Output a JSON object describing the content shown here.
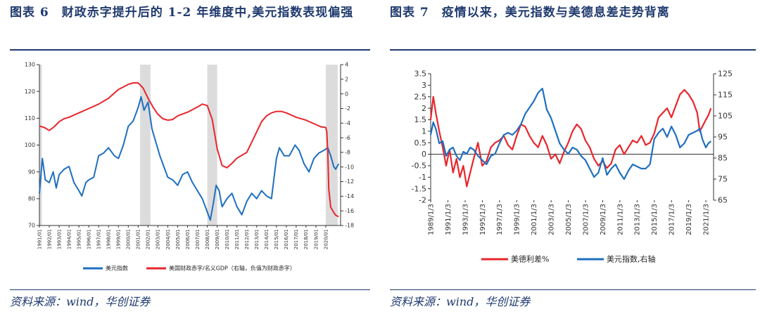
{
  "left": {
    "title": "图表 6　财政赤字提升后的 1-2 年维度中,美元指数表现偏强",
    "source": "资料来源：wind，华创证券",
    "chart_data": {
      "type": "line",
      "x_range": [
        1991.0,
        2021.5
      ],
      "x_labels": [
        "1991/01",
        "1992/01",
        "1993/01",
        "1994/01",
        "1995/01",
        "1996/01",
        "1997/01",
        "1998/01",
        "1999/01",
        "2000/01",
        "2001/01",
        "2002/01",
        "2003/01",
        "2004/01",
        "2005/01",
        "2006/01",
        "2007/01",
        "2008/01",
        "2009/01",
        "2010/01",
        "2011/01",
        "2012/01",
        "2013/01",
        "2014/01",
        "2015/01",
        "2016/01",
        "2017/01",
        "2018/01",
        "2019/01",
        "2020/01"
      ],
      "y_left": {
        "ticks": [
          "70",
          "80",
          "90",
          "100",
          "110",
          "120",
          "130"
        ],
        "lim": [
          70,
          130
        ]
      },
      "y_right": {
        "ticks": [
          "4",
          "2",
          "0",
          "-2",
          "-4",
          "-6",
          "-8",
          "-10",
          "-12",
          "-14",
          "-16",
          "-18"
        ],
        "lim": [
          -18,
          4
        ]
      },
      "shaded_periods": [
        [
          1991.0,
          1991.25
        ],
        [
          2001.2,
          2002.25
        ],
        [
          2008.0,
          2009.0
        ],
        [
          2020.0,
          2021.2
        ]
      ],
      "series": [
        {
          "name": "美元指数",
          "axis": "left",
          "color": "#1f6fc0",
          "x": [
            1991.0,
            1991.3,
            1991.6,
            1992.0,
            1992.4,
            1992.7,
            1993.0,
            1993.5,
            1994.0,
            1994.5,
            1995.0,
            1995.3,
            1995.7,
            1996.0,
            1996.5,
            1997.0,
            1997.5,
            1998.0,
            1998.6,
            1999.0,
            1999.5,
            2000.0,
            2000.5,
            2001.0,
            2001.3,
            2001.6,
            2002.0,
            2002.4,
            2002.8,
            2003.2,
            2003.6,
            2004.0,
            2004.5,
            2005.0,
            2005.5,
            2006.0,
            2006.5,
            2007.0,
            2007.5,
            2008.0,
            2008.3,
            2008.6,
            2008.9,
            2009.2,
            2009.5,
            2010.0,
            2010.5,
            2011.0,
            2011.5,
            2012.0,
            2012.5,
            2013.0,
            2013.5,
            2014.0,
            2014.5,
            2015.0,
            2015.3,
            2015.8,
            2016.3,
            2016.9,
            2017.3,
            2017.8,
            2018.3,
            2018.8,
            2019.3,
            2019.8,
            2020.2,
            2020.5,
            2020.8,
            2021.0,
            2021.3
          ],
          "y": [
            82,
            95,
            87,
            86,
            90,
            84,
            89,
            91,
            92,
            86,
            83,
            81,
            86,
            87,
            88,
            96,
            97,
            99,
            96,
            95,
            100,
            107,
            109,
            114,
            118,
            113,
            116,
            106,
            101,
            96,
            92,
            88,
            87,
            85,
            89,
            90,
            86,
            83,
            80,
            75,
            72,
            78,
            85,
            83,
            77,
            80,
            82,
            77,
            74,
            79,
            82,
            80,
            83,
            81,
            80,
            95,
            99,
            96,
            96,
            100,
            98,
            93,
            90,
            95,
            97,
            98,
            99,
            96,
            92,
            91,
            93
          ]
        },
        {
          "name": "美国财政赤字/名义GDP（右轴，负值为财政赤字）",
          "axis": "right",
          "color": "#e8262d",
          "x": [
            1991.0,
            1991.5,
            1992.0,
            1992.5,
            1993.0,
            1993.5,
            1994.0,
            1995.0,
            1996.0,
            1997.0,
            1998.0,
            1999.0,
            2000.0,
            2000.5,
            2001.0,
            2001.5,
            2002.0,
            2002.5,
            2003.0,
            2003.5,
            2004.0,
            2004.5,
            2005.0,
            2006.0,
            2007.0,
            2007.5,
            2008.0,
            2008.5,
            2009.0,
            2009.5,
            2010.0,
            2010.5,
            2011.0,
            2012.0,
            2013.0,
            2013.5,
            2014.0,
            2014.5,
            2015.0,
            2015.5,
            2016.0,
            2017.0,
            2018.0,
            2019.0,
            2019.5,
            2020.0,
            2020.1,
            2020.2,
            2020.3,
            2020.5,
            2020.8,
            2021.0,
            2021.3
          ],
          "y": [
            -4.4,
            -4.6,
            -5.0,
            -4.5,
            -3.8,
            -3.4,
            -3.2,
            -2.6,
            -2.0,
            -1.4,
            -0.6,
            0.6,
            1.3,
            1.5,
            1.5,
            0.8,
            -0.6,
            -1.8,
            -2.8,
            -3.4,
            -3.6,
            -3.5,
            -3.0,
            -2.5,
            -1.8,
            -1.4,
            -1.6,
            -3.5,
            -7.5,
            -9.8,
            -10.1,
            -9.5,
            -8.8,
            -8.0,
            -5.2,
            -3.8,
            -3.0,
            -2.6,
            -2.4,
            -2.4,
            -2.6,
            -3.2,
            -3.6,
            -4.2,
            -4.5,
            -4.6,
            -5.2,
            -8.0,
            -13.0,
            -15.5,
            -16.2,
            -16.6,
            -16.8
          ]
        }
      ],
      "legend": [
        "美元指数",
        "美国财政赤字/名义GDP（右轴，负值为财政赤字）"
      ]
    }
  },
  "right": {
    "title": "图表 7　疫情以来，美元指数与美德息差走势背离",
    "source": "资料来源：wind，华创证券",
    "chart_data": {
      "type": "line",
      "x_range": [
        1989.0,
        2021.9
      ],
      "x_labels": [
        "1989/1/3",
        "1991/1/3",
        "1993/1/3",
        "1995/1/3",
        "1997/1/3",
        "1999/1/3",
        "2001/1/3",
        "2003/1/3",
        "2005/1/3",
        "2007/1/3",
        "2009/1/3",
        "2011/1/3",
        "2013/1/3",
        "2015/1/3",
        "2017/1/3",
        "2019/1/3",
        "2021/1/3"
      ],
      "y_left": {
        "ticks": [
          "3.5",
          "3",
          "2.5",
          "2",
          "1.5",
          "1",
          "0.5",
          "0",
          "-0.5",
          "-1",
          "-1.5",
          "-2"
        ],
        "lim": [
          -2,
          3.5
        ]
      },
      "y_right": {
        "ticks": [
          "125",
          "115",
          "105",
          "95",
          "85",
          "75",
          "65"
        ],
        "lim": [
          65,
          125
        ]
      },
      "series": [
        {
          "name": "美德利差%",
          "axis": "left",
          "color": "#e8262d",
          "x": [
            1989.0,
            1989.3,
            1989.6,
            1990.0,
            1990.4,
            1990.8,
            1991.2,
            1991.6,
            1992.0,
            1992.4,
            1992.8,
            1993.2,
            1993.6,
            1994.0,
            1994.5,
            1995.0,
            1995.5,
            1996.0,
            1996.5,
            1997.0,
            1997.5,
            1998.0,
            1998.5,
            1999.0,
            1999.5,
            2000.0,
            2000.5,
            2001.0,
            2001.5,
            2002.0,
            2002.5,
            2003.0,
            2003.5,
            2004.0,
            2004.5,
            2005.0,
            2005.5,
            2006.0,
            2006.5,
            2007.0,
            2007.5,
            2008.0,
            2008.5,
            2009.0,
            2009.5,
            2010.0,
            2010.5,
            2011.0,
            2011.5,
            2012.0,
            2012.5,
            2013.0,
            2013.5,
            2014.0,
            2014.5,
            2015.0,
            2015.5,
            2016.0,
            2016.5,
            2017.0,
            2017.5,
            2018.0,
            2018.5,
            2019.0,
            2019.5,
            2020.0,
            2020.3,
            2020.6,
            2021.0,
            2021.3,
            2021.6
          ],
          "y": [
            1.5,
            2.5,
            1.8,
            1.0,
            0.3,
            -0.5,
            0.2,
            -0.8,
            -0.2,
            -1.0,
            -0.5,
            -1.4,
            -0.8,
            -0.2,
            0.5,
            -0.5,
            -0.3,
            0.3,
            0.5,
            0.6,
            0.8,
            0.4,
            0.2,
            0.8,
            1.3,
            1.2,
            0.8,
            0.5,
            0.3,
            0.8,
            0.4,
            -0.2,
            0.0,
            -0.4,
            0.1,
            0.5,
            1.0,
            1.3,
            1.1,
            0.6,
            0.3,
            -0.2,
            -0.5,
            -0.3,
            -0.6,
            -0.4,
            0.2,
            0.4,
            0.0,
            0.3,
            0.6,
            0.5,
            0.8,
            0.4,
            0.5,
            0.9,
            1.6,
            1.8,
            2.0,
            1.6,
            2.1,
            2.6,
            2.8,
            2.6,
            2.3,
            1.8,
            1.0,
            1.2,
            1.5,
            1.7,
            2.0
          ]
        },
        {
          "name": "美元指数,右轴",
          "axis": "right",
          "color": "#1f6fc0",
          "x": [
            1989.0,
            1989.3,
            1989.6,
            1990.0,
            1990.4,
            1990.8,
            1991.2,
            1991.6,
            1992.0,
            1992.4,
            1992.8,
            1993.2,
            1993.6,
            1994.0,
            1994.5,
            1995.0,
            1995.5,
            1996.0,
            1996.5,
            1997.0,
            1997.5,
            1998.0,
            1998.5,
            1999.0,
            1999.5,
            2000.0,
            2000.5,
            2001.0,
            2001.5,
            2002.0,
            2002.5,
            2003.0,
            2003.5,
            2004.0,
            2004.5,
            2005.0,
            2005.5,
            2006.0,
            2006.5,
            2007.0,
            2007.5,
            2008.0,
            2008.5,
            2009.0,
            2009.5,
            2010.0,
            2010.5,
            2011.0,
            2011.5,
            2012.0,
            2012.5,
            2013.0,
            2013.5,
            2014.0,
            2014.5,
            2015.0,
            2015.5,
            2016.0,
            2016.5,
            2017.0,
            2017.5,
            2018.0,
            2018.5,
            2019.0,
            2019.5,
            2020.0,
            2020.3,
            2020.6,
            2021.0,
            2021.3,
            2021.6
          ],
          "y": [
            96,
            102,
            99,
            92,
            93,
            86,
            89,
            90,
            86,
            84,
            88,
            87,
            90,
            89,
            86,
            84,
            82,
            86,
            87,
            92,
            96,
            97,
            96,
            98,
            101,
            106,
            109,
            112,
            116,
            118,
            108,
            104,
            98,
            92,
            89,
            87,
            90,
            89,
            86,
            84,
            80,
            76,
            78,
            85,
            77,
            80,
            82,
            78,
            75,
            79,
            82,
            81,
            80,
            80,
            82,
            94,
            97,
            99,
            95,
            100,
            96,
            90,
            92,
            96,
            97,
            98,
            99,
            94,
            90,
            92,
            93
          ]
        }
      ],
      "legend": [
        "美德利差%",
        "美元指数,右轴"
      ]
    }
  }
}
